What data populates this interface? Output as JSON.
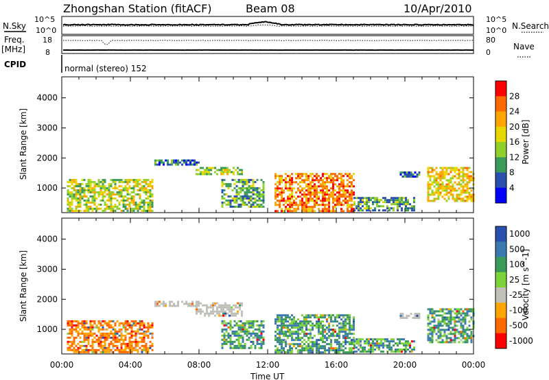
{
  "header": {
    "station": "Zhongshan Station (fitACF)",
    "beam": "Beam 08",
    "date": "10/Apr/2010"
  },
  "top_panels": {
    "nsky_label": "N.Sky",
    "nsky_ticks": [
      "10^5",
      "10^0"
    ],
    "nsearch_label": "N.Search",
    "nsearch_ticks": [
      "10^5",
      "10^0"
    ],
    "freq_label": "Freq.",
    "freq_unit": "[MHz]",
    "freq_ticks": [
      "18",
      "8"
    ],
    "nave_label": "Nave",
    "nave_ticks": [
      "80",
      "0"
    ],
    "cpid_label": "CPID",
    "cpid_text": "normal (stereo) 152"
  },
  "chart_data": [
    {
      "type": "heatmap",
      "name": "power",
      "xlabel": "",
      "ylabel": "Slant Range [km]",
      "x_ticks": [
        "00:00",
        "04:00",
        "08:00",
        "12:00",
        "16:00",
        "20:00",
        "00:00"
      ],
      "y_ticks": [
        "1000",
        "2000",
        "3000",
        "4000"
      ],
      "ylim": [
        180,
        4700
      ],
      "xlim_hours": [
        0,
        24
      ],
      "colorbar_label": "Power [dB]",
      "colorbar_ticks": [
        "28",
        "24",
        "20",
        "16",
        "12",
        "8",
        "4"
      ],
      "colorbar_colors": [
        "#ff0000",
        "#ff6a00",
        "#ffa500",
        "#e6d700",
        "#8fd12a",
        "#3a9a5a",
        "#2a4fb0",
        "#0000ff"
      ],
      "regions": [
        {
          "t0": 0.3,
          "t1": 5.3,
          "r0": 250,
          "r1": 1300,
          "level": 0.5
        },
        {
          "t0": 5.4,
          "t1": 8.0,
          "r0": 1750,
          "r1": 1950,
          "level": 0.2
        },
        {
          "t0": 7.8,
          "t1": 10.5,
          "r0": 1450,
          "r1": 1700,
          "level": 0.45
        },
        {
          "t0": 9.3,
          "t1": 11.8,
          "r0": 400,
          "r1": 1300,
          "level": 0.35
        },
        {
          "t0": 12.4,
          "t1": 17.0,
          "r0": 250,
          "r1": 1500,
          "level": 0.8
        },
        {
          "t0": 17.0,
          "t1": 20.5,
          "r0": 250,
          "r1": 700,
          "level": 0.3
        },
        {
          "t0": 19.7,
          "t1": 20.8,
          "r0": 1350,
          "r1": 1550,
          "level": 0.2
        },
        {
          "t0": 21.3,
          "t1": 24.0,
          "r0": 600,
          "r1": 1700,
          "level": 0.6
        }
      ]
    },
    {
      "type": "heatmap",
      "name": "velocity",
      "xlabel": "Time UT",
      "ylabel": "Slant Range [km]",
      "x_ticks": [
        "00:00",
        "04:00",
        "08:00",
        "12:00",
        "16:00",
        "20:00",
        "00:00"
      ],
      "y_ticks": [
        "1000",
        "2000",
        "3000",
        "4000"
      ],
      "ylim": [
        180,
        4700
      ],
      "xlim_hours": [
        0,
        24
      ],
      "colorbar_label": "Velocity [m s^-1]",
      "colorbar_ticks": [
        "1000",
        "500",
        "100",
        "25",
        "-25",
        "-100",
        "-500",
        "-1000"
      ],
      "colorbar_colors": [
        "#2a4fb0",
        "#3a7ab0",
        "#3a9a5a",
        "#7ed33a",
        "#c0c0b8",
        "#ffa500",
        "#ff6a00",
        "#ff0000"
      ],
      "regions": [
        {
          "t0": 0.3,
          "t1": 5.3,
          "r0": 250,
          "r1": 1300,
          "vel": -300
        },
        {
          "t0": 5.4,
          "t1": 8.0,
          "r0": 1750,
          "r1": 1950,
          "vel": 0
        },
        {
          "t0": 7.8,
          "t1": 10.5,
          "r0": 1450,
          "r1": 1900,
          "vel": 0
        },
        {
          "t0": 9.3,
          "t1": 11.8,
          "r0": 400,
          "r1": 1300,
          "vel": 300
        },
        {
          "t0": 12.4,
          "t1": 17.0,
          "r0": 250,
          "r1": 1500,
          "vel": 200
        },
        {
          "t0": 17.0,
          "t1": 20.5,
          "r0": 250,
          "r1": 700,
          "vel": 100
        },
        {
          "t0": 19.7,
          "t1": 20.8,
          "r0": 1350,
          "r1": 1550,
          "vel": 0
        },
        {
          "t0": 21.3,
          "t1": 24.0,
          "r0": 600,
          "r1": 1700,
          "vel": 600
        }
      ]
    }
  ]
}
